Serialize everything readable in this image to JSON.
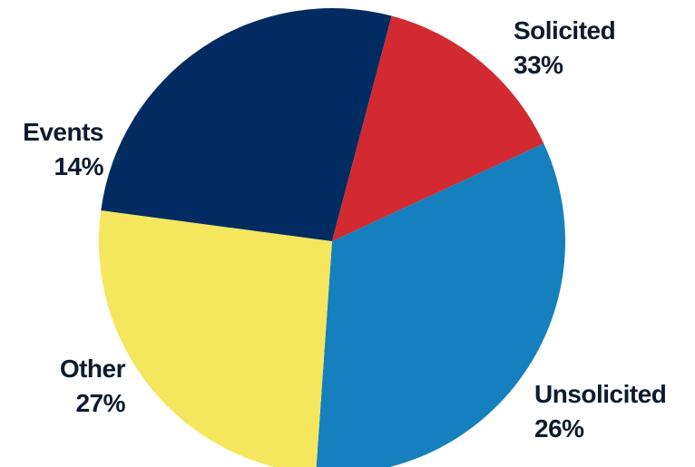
{
  "chart_data": {
    "type": "pie",
    "title": "",
    "slices": [
      {
        "label": "Solicited",
        "value": 33,
        "display": "33%",
        "color": "#1580bd"
      },
      {
        "label": "Unsolicited",
        "value": 26,
        "display": "26%",
        "color": "#f4e65d"
      },
      {
        "label": "Other",
        "value": 27,
        "display": "27%",
        "color": "#022c61"
      },
      {
        "label": "Events",
        "value": 14,
        "display": "14%",
        "color": "#d22a30"
      }
    ],
    "legend": "none",
    "label_color": "#0d1b2e"
  }
}
